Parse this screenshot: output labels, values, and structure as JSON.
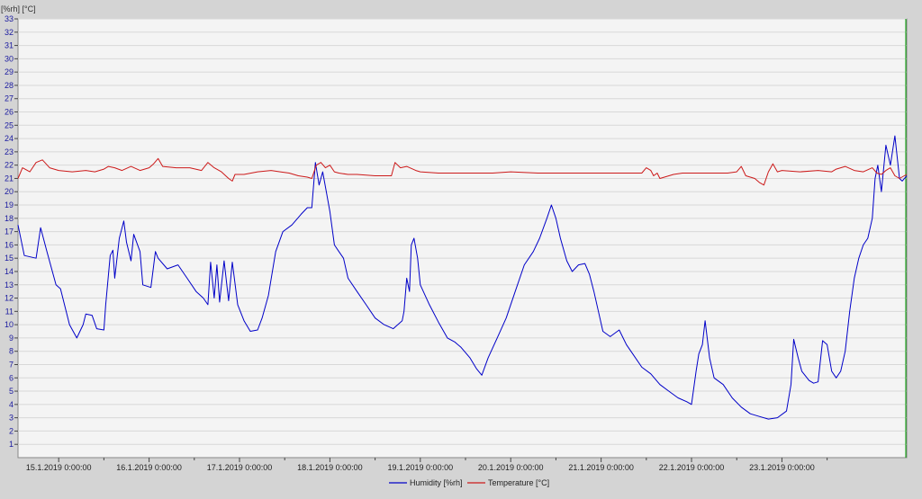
{
  "chart_data": {
    "type": "line",
    "title": "",
    "ylabel": "[%rh]  [°C]",
    "xlabel": "",
    "ylim": [
      0,
      33
    ],
    "y_ticks": [
      1,
      2,
      3,
      4,
      5,
      6,
      7,
      8,
      9,
      10,
      11,
      12,
      13,
      14,
      15,
      16,
      17,
      18,
      19,
      20,
      21,
      22,
      23,
      24,
      25,
      26,
      27,
      28,
      29,
      30,
      31,
      32,
      33
    ],
    "x_range_days": [
      "14.1.2019 13:00",
      "23.1.2019 19:00"
    ],
    "x_ticks": [
      {
        "label": "15.1.2019 0:00:00",
        "day": 15
      },
      {
        "label": "16.1.2019 0:00:00",
        "day": 16
      },
      {
        "label": "17.1.2019 0:00:00",
        "day": 17
      },
      {
        "label": "18.1.2019 0:00:00",
        "day": 18
      },
      {
        "label": "19.1.2019 0:00:00",
        "day": 19
      },
      {
        "label": "20.1.2019 0:00:00",
        "day": 20
      },
      {
        "label": "21.1.2019 0:00:00",
        "day": 21
      },
      {
        "label": "22.1.2019 0:00:00",
        "day": 22
      },
      {
        "label": "23.1.2019 0:00:00",
        "day": 23
      }
    ],
    "grid": true,
    "legend_position": "bottom-center",
    "series": [
      {
        "name": "Humidity [%rh]",
        "color": "#0000c8",
        "points": [
          [
            14.55,
            17.5
          ],
          [
            14.62,
            15.2
          ],
          [
            14.75,
            15.0
          ],
          [
            14.8,
            17.3
          ],
          [
            14.87,
            15.5
          ],
          [
            14.97,
            13.0
          ],
          [
            15.02,
            12.7
          ],
          [
            15.12,
            10.0
          ],
          [
            15.2,
            9.0
          ],
          [
            15.27,
            10.0
          ],
          [
            15.3,
            10.8
          ],
          [
            15.37,
            10.7
          ],
          [
            15.42,
            9.7
          ],
          [
            15.5,
            9.6
          ],
          [
            15.52,
            11.5
          ],
          [
            15.57,
            15.2
          ],
          [
            15.6,
            15.6
          ],
          [
            15.62,
            13.5
          ],
          [
            15.67,
            16.5
          ],
          [
            15.72,
            17.8
          ],
          [
            15.75,
            16.2
          ],
          [
            15.8,
            14.8
          ],
          [
            15.83,
            16.8
          ],
          [
            15.9,
            15.5
          ],
          [
            15.93,
            13.0
          ],
          [
            16.02,
            12.8
          ],
          [
            16.07,
            15.5
          ],
          [
            16.1,
            15.0
          ],
          [
            16.2,
            14.2
          ],
          [
            16.32,
            14.5
          ],
          [
            16.42,
            13.5
          ],
          [
            16.52,
            12.5
          ],
          [
            16.6,
            12.0
          ],
          [
            16.65,
            11.5
          ],
          [
            16.68,
            14.7
          ],
          [
            16.72,
            12.0
          ],
          [
            16.75,
            14.5
          ],
          [
            16.78,
            11.7
          ],
          [
            16.83,
            14.8
          ],
          [
            16.88,
            11.8
          ],
          [
            16.92,
            14.7
          ],
          [
            16.98,
            11.5
          ],
          [
            17.05,
            10.3
          ],
          [
            17.12,
            9.5
          ],
          [
            17.2,
            9.6
          ],
          [
            17.25,
            10.5
          ],
          [
            17.32,
            12.2
          ],
          [
            17.4,
            15.5
          ],
          [
            17.48,
            17.0
          ],
          [
            17.58,
            17.5
          ],
          [
            17.68,
            18.3
          ],
          [
            17.75,
            18.8
          ],
          [
            17.8,
            18.8
          ],
          [
            17.84,
            22.2
          ],
          [
            17.88,
            20.5
          ],
          [
            17.92,
            21.5
          ],
          [
            17.96,
            20.0
          ],
          [
            18.0,
            18.5
          ],
          [
            18.05,
            16.0
          ],
          [
            18.1,
            15.5
          ],
          [
            18.15,
            15.0
          ],
          [
            18.2,
            13.5
          ],
          [
            18.3,
            12.5
          ],
          [
            18.4,
            11.5
          ],
          [
            18.5,
            10.5
          ],
          [
            18.6,
            10.0
          ],
          [
            18.7,
            9.7
          ],
          [
            18.8,
            10.3
          ],
          [
            18.82,
            11.0
          ],
          [
            18.85,
            13.5
          ],
          [
            18.88,
            12.5
          ],
          [
            18.9,
            16.0
          ],
          [
            18.93,
            16.5
          ],
          [
            18.97,
            15.0
          ],
          [
            19.0,
            13.0
          ],
          [
            19.1,
            11.5
          ],
          [
            19.2,
            10.2
          ],
          [
            19.3,
            9.0
          ],
          [
            19.38,
            8.7
          ],
          [
            19.45,
            8.3
          ],
          [
            19.55,
            7.5
          ],
          [
            19.62,
            6.7
          ],
          [
            19.68,
            6.2
          ],
          [
            19.75,
            7.5
          ],
          [
            19.85,
            9.0
          ],
          [
            19.95,
            10.5
          ],
          [
            20.05,
            12.5
          ],
          [
            20.15,
            14.5
          ],
          [
            20.25,
            15.5
          ],
          [
            20.32,
            16.5
          ],
          [
            20.4,
            18.0
          ],
          [
            20.45,
            19.0
          ],
          [
            20.5,
            18.0
          ],
          [
            20.55,
            16.5
          ],
          [
            20.62,
            14.8
          ],
          [
            20.68,
            14.0
          ],
          [
            20.75,
            14.5
          ],
          [
            20.82,
            14.6
          ],
          [
            20.87,
            13.8
          ],
          [
            20.92,
            12.5
          ],
          [
            20.97,
            11.0
          ],
          [
            21.02,
            9.5
          ],
          [
            21.1,
            9.1
          ],
          [
            21.2,
            9.6
          ],
          [
            21.28,
            8.5
          ],
          [
            21.35,
            7.8
          ],
          [
            21.45,
            6.8
          ],
          [
            21.55,
            6.3
          ],
          [
            21.65,
            5.5
          ],
          [
            21.75,
            5.0
          ],
          [
            21.85,
            4.5
          ],
          [
            21.95,
            4.2
          ],
          [
            22.0,
            4.0
          ],
          [
            22.05,
            6.5
          ],
          [
            22.08,
            7.8
          ],
          [
            22.12,
            8.5
          ],
          [
            22.15,
            10.3
          ],
          [
            22.2,
            7.5
          ],
          [
            22.25,
            6.0
          ],
          [
            22.35,
            5.5
          ],
          [
            22.45,
            4.5
          ],
          [
            22.55,
            3.8
          ],
          [
            22.65,
            3.3
          ],
          [
            22.75,
            3.1
          ],
          [
            22.85,
            2.9
          ],
          [
            22.95,
            3.0
          ],
          [
            23.05,
            3.5
          ],
          [
            23.1,
            5.5
          ],
          [
            23.13,
            8.9
          ],
          [
            23.18,
            7.5
          ],
          [
            23.22,
            6.5
          ],
          [
            23.3,
            5.8
          ],
          [
            23.35,
            5.6
          ],
          [
            23.4,
            5.7
          ],
          [
            23.45,
            8.8
          ],
          [
            23.5,
            8.5
          ],
          [
            23.55,
            6.5
          ],
          [
            23.6,
            6.0
          ],
          [
            23.65,
            6.5
          ],
          [
            23.7,
            8.0
          ],
          [
            23.75,
            11.0
          ],
          [
            23.8,
            13.5
          ],
          [
            23.85,
            15.0
          ],
          [
            23.9,
            16.0
          ],
          [
            23.95,
            16.5
          ],
          [
            24.0,
            18.0
          ],
          [
            24.03,
            21.0
          ],
          [
            24.06,
            22.0
          ],
          [
            24.1,
            20.0
          ],
          [
            24.15,
            23.5
          ],
          [
            24.2,
            22.0
          ],
          [
            24.25,
            24.2
          ],
          [
            24.3,
            21.0
          ],
          [
            24.33,
            20.8
          ],
          [
            24.38,
            21.2
          ]
        ]
      },
      {
        "name": "Temperature [°C]",
        "color": "#cc1a1a",
        "points": [
          [
            14.55,
            21.0
          ],
          [
            14.6,
            21.8
          ],
          [
            14.68,
            21.5
          ],
          [
            14.75,
            22.2
          ],
          [
            14.82,
            22.4
          ],
          [
            14.9,
            21.8
          ],
          [
            15.0,
            21.6
          ],
          [
            15.15,
            21.5
          ],
          [
            15.3,
            21.6
          ],
          [
            15.4,
            21.5
          ],
          [
            15.5,
            21.7
          ],
          [
            15.55,
            21.9
          ],
          [
            15.62,
            21.8
          ],
          [
            15.7,
            21.6
          ],
          [
            15.8,
            21.9
          ],
          [
            15.9,
            21.6
          ],
          [
            16.0,
            21.8
          ],
          [
            16.05,
            22.1
          ],
          [
            16.1,
            22.5
          ],
          [
            16.15,
            21.9
          ],
          [
            16.3,
            21.8
          ],
          [
            16.45,
            21.8
          ],
          [
            16.58,
            21.6
          ],
          [
            16.65,
            22.2
          ],
          [
            16.72,
            21.8
          ],
          [
            16.8,
            21.5
          ],
          [
            16.88,
            21.0
          ],
          [
            16.92,
            20.8
          ],
          [
            16.95,
            21.3
          ],
          [
            17.05,
            21.3
          ],
          [
            17.2,
            21.5
          ],
          [
            17.35,
            21.6
          ],
          [
            17.45,
            21.5
          ],
          [
            17.55,
            21.4
          ],
          [
            17.65,
            21.2
          ],
          [
            17.75,
            21.1
          ],
          [
            17.8,
            21.0
          ],
          [
            17.85,
            22.0
          ],
          [
            17.9,
            22.2
          ],
          [
            17.95,
            21.8
          ],
          [
            18.0,
            22.0
          ],
          [
            18.05,
            21.5
          ],
          [
            18.1,
            21.4
          ],
          [
            18.2,
            21.3
          ],
          [
            18.3,
            21.3
          ],
          [
            18.5,
            21.2
          ],
          [
            18.68,
            21.2
          ],
          [
            18.72,
            22.2
          ],
          [
            18.78,
            21.8
          ],
          [
            18.85,
            21.9
          ],
          [
            18.95,
            21.6
          ],
          [
            19.0,
            21.5
          ],
          [
            19.2,
            21.4
          ],
          [
            19.5,
            21.4
          ],
          [
            19.8,
            21.4
          ],
          [
            20.0,
            21.5
          ],
          [
            20.3,
            21.4
          ],
          [
            20.5,
            21.4
          ],
          [
            20.7,
            21.4
          ],
          [
            20.9,
            21.4
          ],
          [
            21.1,
            21.4
          ],
          [
            21.3,
            21.4
          ],
          [
            21.45,
            21.4
          ],
          [
            21.5,
            21.8
          ],
          [
            21.55,
            21.6
          ],
          [
            21.58,
            21.2
          ],
          [
            21.62,
            21.4
          ],
          [
            21.65,
            21.0
          ],
          [
            21.8,
            21.3
          ],
          [
            21.9,
            21.4
          ],
          [
            22.2,
            21.4
          ],
          [
            22.4,
            21.4
          ],
          [
            22.5,
            21.5
          ],
          [
            22.55,
            21.9
          ],
          [
            22.6,
            21.2
          ],
          [
            22.7,
            21.0
          ],
          [
            22.75,
            20.7
          ],
          [
            22.8,
            20.5
          ],
          [
            22.85,
            21.5
          ],
          [
            22.9,
            22.1
          ],
          [
            22.95,
            21.5
          ],
          [
            23.0,
            21.6
          ],
          [
            23.2,
            21.5
          ],
          [
            23.4,
            21.6
          ],
          [
            23.55,
            21.5
          ],
          [
            23.6,
            21.7
          ],
          [
            23.7,
            21.9
          ],
          [
            23.8,
            21.6
          ],
          [
            23.9,
            21.5
          ],
          [
            24.0,
            21.8
          ],
          [
            24.05,
            21.4
          ],
          [
            24.1,
            21.3
          ],
          [
            24.15,
            21.6
          ],
          [
            24.2,
            21.8
          ],
          [
            24.25,
            21.2
          ],
          [
            24.3,
            21.0
          ],
          [
            24.38,
            21.3
          ]
        ]
      }
    ]
  }
}
